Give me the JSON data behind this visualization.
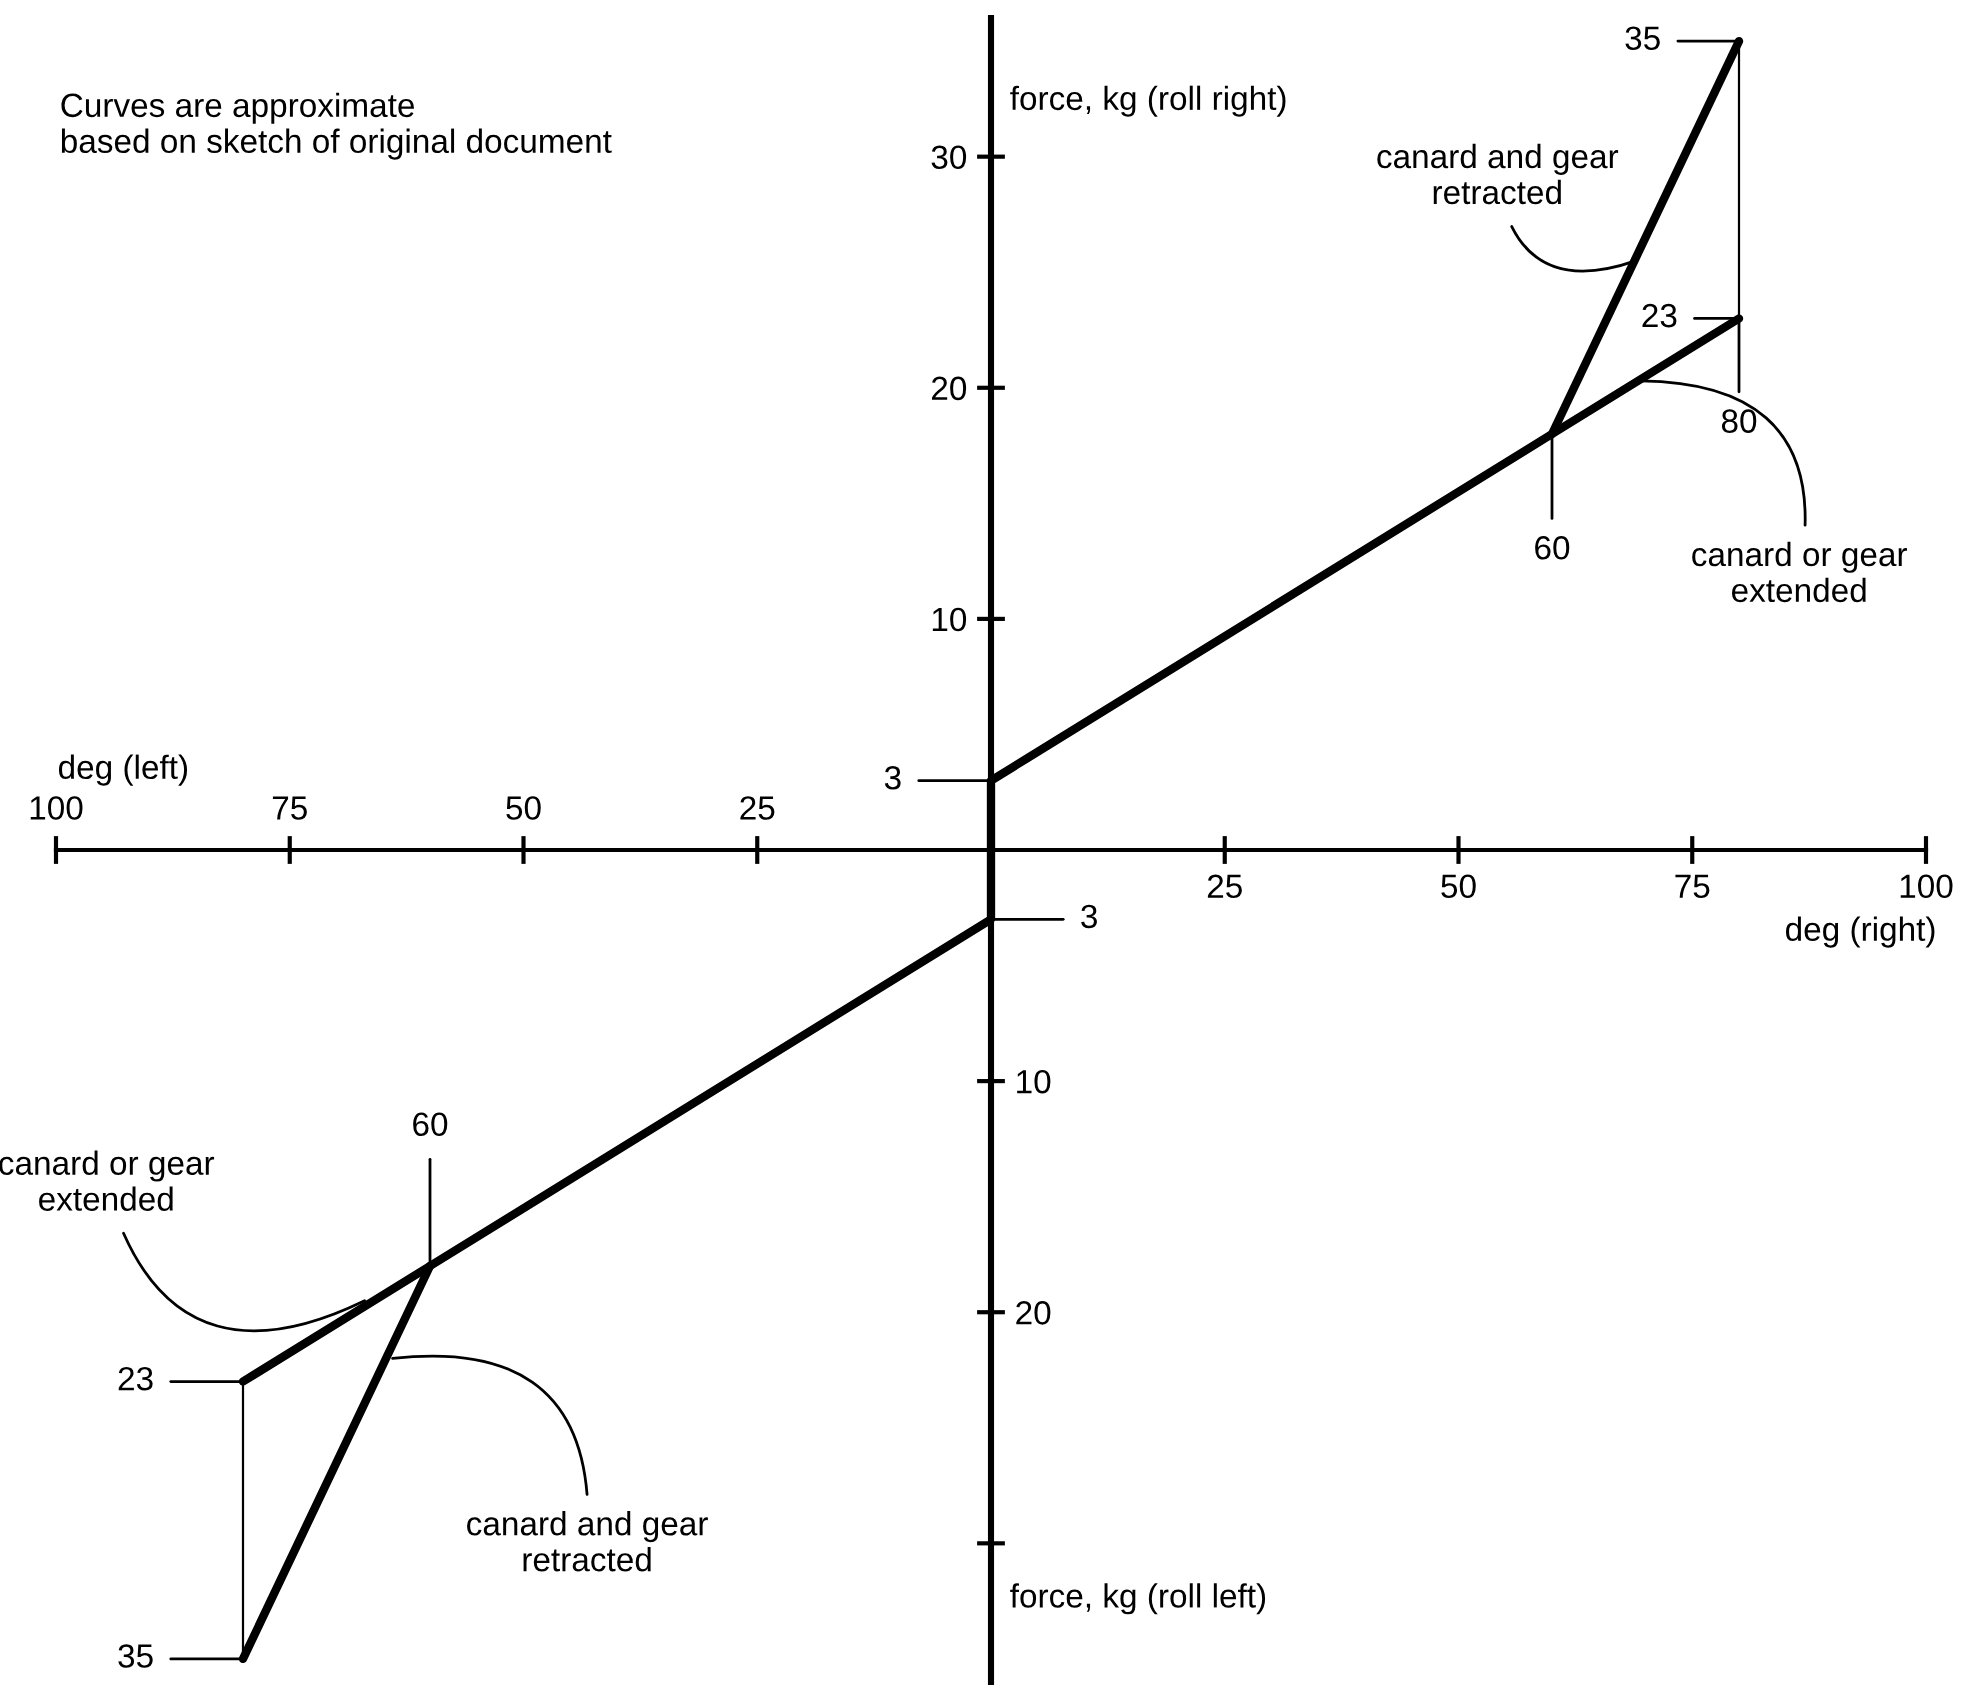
{
  "chart_data": {
    "type": "line",
    "xlabel": "deg (right)",
    "xlim": [
      -100,
      100
    ],
    "ylim": [
      -36,
      36
    ],
    "xticks": [
      25,
      50,
      75,
      100
    ],
    "x2lim": [
      -100,
      100
    ],
    "x2ticks": [
      {
        "value": -100,
        "label": "100"
      },
      {
        "value": -75,
        "label": "75"
      },
      {
        "value": -50,
        "label": "50"
      },
      {
        "value": -25,
        "label": "25"
      }
    ],
    "yticks": [
      10,
      20,
      30
    ],
    "y2lim": [
      -36,
      36
    ],
    "y2ticks": [
      {
        "value": -30,
        "label": null
      },
      {
        "value": -20,
        "label": "20"
      },
      {
        "value": -10,
        "label": "10"
      }
    ],
    "grid": false,
    "legend": false,
    "marker": "none",
    "line_style": "solid",
    "series": [
      {
        "color": "#000000",
        "x": [
          -80,
          -60,
          0,
          0,
          60,
          80
        ],
        "values": [
          -23,
          -18,
          -3,
          3,
          18,
          23
        ]
      },
      {
        "color": "#000000",
        "x": [
          60,
          80
        ],
        "values": [
          18,
          35
        ],
        "errors": [
          null,
          [
            23,
            35
          ]
        ]
      },
      {
        "color": "#000000",
        "x": [
          -60,
          -80
        ],
        "values": [
          -18,
          -35
        ],
        "errors": [
          null,
          [
            -35,
            -23
          ]
        ]
      }
    ],
    "annotations": [
      "Curves are approximate\nbased on sketch of original document",
      "deg (left)",
      "force, kg (roll left)",
      "force, kg (roll right)",
      {
        "text": "35",
        "x": 80,
        "y": 35
      },
      {
        "text": "23",
        "x": 80,
        "y": 23
      },
      {
        "text": "80",
        "x": 80,
        "y": 23
      },
      {
        "text": "60",
        "x": 60,
        "y": 18
      },
      {
        "text": "3",
        "x": 0,
        "y": 3
      },
      {
        "text": "3",
        "x": 0,
        "y": -3
      },
      {
        "text": "60",
        "x": -60,
        "y": -18
      },
      {
        "text": "23",
        "x": -80,
        "y": -23
      },
      {
        "text": "35",
        "x": -80,
        "y": -35
      },
      {
        "text": "canard and gear\nretracted",
        "x": 69,
        "y": 25.5
      },
      {
        "text": "canard or gear\nextended",
        "x": 69.5,
        "y": 20.3
      },
      {
        "text": "canard or gear\nextended",
        "x": -67,
        "y": -19.5
      },
      {
        "text": "canard and gear\nretracted",
        "x": -64,
        "y": -22
      }
    ]
  }
}
